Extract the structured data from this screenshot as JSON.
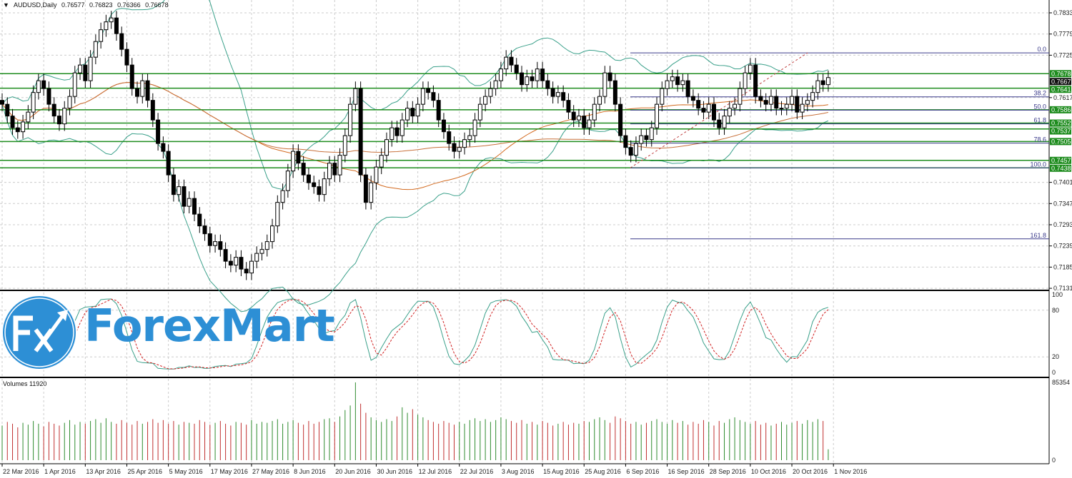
{
  "header": {
    "symbol": "AUDUSD,Daily",
    "open": "0.76577",
    "high": "0.76823",
    "low": "0.76366",
    "close": "0.76678",
    "menu_icon": "triangle-down-icon"
  },
  "logo": {
    "text": "ForexMart",
    "mark": "Fx",
    "color": "#2d8fd5"
  },
  "volume_label": "Volumes 11920",
  "chart_data": [
    {
      "type": "candlestick",
      "title": "AUDUSD,Daily",
      "price_ticks": [
        "0.7833",
        "0.7779",
        "0.7725",
        "0.7617",
        "0.7401",
        "0.7347",
        "0.7293",
        "0.7239",
        "0.7185",
        "0.7131"
      ],
      "ylim": [
        0.7131,
        0.7833
      ],
      "date_ticks": [
        "22 Mar 2016",
        "1 Apr 2016",
        "13 Apr 2016",
        "25 Apr 2016",
        "5 May 2016",
        "17 May 2016",
        "27 May 2016",
        "8 Jun 2016",
        "20 Jun 2016",
        "30 Jun 2016",
        "12 Jul 2016",
        "22 Jul 2016",
        "3 Aug 2016",
        "15 Aug 2016",
        "25 Aug 2016",
        "6 Sep 2016",
        "16 Sep 2016",
        "28 Sep 2016",
        "10 Oct 2016",
        "20 Oct 2016",
        "1 Nov 2016"
      ],
      "closes": [
        0.76,
        0.757,
        0.754,
        0.753,
        0.7555,
        0.758,
        0.763,
        0.766,
        0.764,
        0.76,
        0.757,
        0.755,
        0.759,
        0.762,
        0.768,
        0.77,
        0.766,
        0.772,
        0.776,
        0.779,
        0.781,
        0.782,
        0.778,
        0.774,
        0.77,
        0.764,
        0.762,
        0.766,
        0.761,
        0.756,
        0.75,
        0.748,
        0.742,
        0.737,
        0.739,
        0.734,
        0.736,
        0.732,
        0.729,
        0.727,
        0.724,
        0.725,
        0.723,
        0.72,
        0.719,
        0.721,
        0.718,
        0.717,
        0.72,
        0.722,
        0.723,
        0.725,
        0.729,
        0.735,
        0.738,
        0.743,
        0.748,
        0.745,
        0.742,
        0.74,
        0.739,
        0.737,
        0.741,
        0.745,
        0.742,
        0.747,
        0.752,
        0.76,
        0.764,
        0.742,
        0.735,
        0.74,
        0.744,
        0.747,
        0.751,
        0.754,
        0.752,
        0.756,
        0.759,
        0.757,
        0.76,
        0.764,
        0.763,
        0.761,
        0.756,
        0.753,
        0.75,
        0.748,
        0.749,
        0.751,
        0.752,
        0.756,
        0.76,
        0.762,
        0.764,
        0.766,
        0.769,
        0.772,
        0.77,
        0.768,
        0.765,
        0.767,
        0.766,
        0.769,
        0.766,
        0.764,
        0.762,
        0.763,
        0.761,
        0.758,
        0.756,
        0.757,
        0.754,
        0.756,
        0.76,
        0.762,
        0.768,
        0.766,
        0.76,
        0.752,
        0.749,
        0.747,
        0.75,
        0.752,
        0.751,
        0.754,
        0.76,
        0.764,
        0.766,
        0.767,
        0.765,
        0.766,
        0.762,
        0.761,
        0.759,
        0.758,
        0.76,
        0.756,
        0.754,
        0.757,
        0.759,
        0.76,
        0.764,
        0.768,
        0.77,
        0.762,
        0.761,
        0.76,
        0.762,
        0.759,
        0.759,
        0.76,
        0.762,
        0.758,
        0.76,
        0.761,
        0.763,
        0.766,
        0.765,
        0.7668
      ],
      "levels": [
        {
          "price": 0.7678,
          "label": "0.7678"
        },
        {
          "price": 0.7641,
          "label": "0.7641"
        },
        {
          "price": 0.7586,
          "label": "0.7586"
        },
        {
          "price": 0.7552,
          "label": "0.7552"
        },
        {
          "price": 0.7537,
          "label": "0.7537"
        },
        {
          "price": 0.7505,
          "label": "0.7505"
        },
        {
          "price": 0.7457,
          "label": "0.7457"
        },
        {
          "price": 0.7438,
          "label": "0.7438"
        }
      ],
      "current_price_label": "0.7667",
      "fibonacci": [
        {
          "level": "0.0",
          "price": 0.7731
        },
        {
          "level": "38.2",
          "price": 0.7619
        },
        {
          "level": "50.0",
          "price": 0.7585
        },
        {
          "level": "61.8",
          "price": 0.755
        },
        {
          "level": "78.6",
          "price": 0.7501
        },
        {
          "level": "100.0",
          "price": 0.7438
        },
        {
          "level": "161.8",
          "price": 0.7257
        }
      ],
      "colors": {
        "level": "#1e8c1e",
        "label_bg": "#1e8c1e",
        "fib": "#3a3a8a",
        "ma_fast": "#d2691e",
        "ma_slow": "#c8703a",
        "bands": "#3aa08a",
        "stoch_main": "#3aa08a",
        "stoch_signal": "#d02020"
      }
    },
    {
      "type": "line",
      "title": "",
      "yticks": [
        "100",
        "80",
        "20",
        "0"
      ],
      "ylim": [
        0,
        100
      ]
    },
    {
      "type": "bar",
      "title": "Volumes 11920",
      "yticks": [
        "85354",
        "0"
      ],
      "ylim": [
        0,
        85354
      ],
      "values": [
        38000,
        42000,
        40000,
        36000,
        41000,
        39000,
        43000,
        40000,
        37000,
        42000,
        40000,
        38000,
        41000,
        44000,
        39000,
        42000,
        40000,
        43000,
        45000,
        41000,
        46000,
        42000,
        40000,
        44000,
        41000,
        39000,
        43000,
        40000,
        42000,
        45000,
        41000,
        44000,
        40000,
        43000,
        39000,
        42000,
        41000,
        40000,
        44000,
        42000,
        39000,
        41000,
        43000,
        40000,
        38000,
        42000,
        41000,
        39000,
        44000,
        40000,
        42000,
        41000,
        43000,
        45000,
        40000,
        42000,
        44000,
        41000,
        39000,
        43000,
        40000,
        42000,
        45000,
        46000,
        42000,
        48000,
        55000,
        60000,
        85354,
        62000,
        52000,
        47000,
        44000,
        42000,
        45000,
        43000,
        48000,
        58000,
        52000,
        56000,
        50000,
        47000,
        44000,
        42000,
        40000,
        43000,
        41000,
        39000,
        42000,
        40000,
        44000,
        46000,
        43000,
        45000,
        42000,
        44000,
        47000,
        45000,
        43000,
        41000,
        44000,
        40000,
        42000,
        39000,
        43000,
        41000,
        38000,
        40000,
        42000,
        39000,
        41000,
        40000,
        43000,
        42000,
        45000,
        47000,
        44000,
        41000,
        48000,
        46000,
        43000,
        40000,
        42000,
        39000,
        41000,
        43000,
        45000,
        42000,
        40000,
        44000,
        41000,
        43000,
        39000,
        42000,
        40000,
        44000,
        42000,
        38000,
        43000,
        41000,
        45000,
        47000,
        44000,
        42000,
        40000,
        43000,
        39000,
        41000,
        38000,
        40000,
        42000,
        39000,
        41000,
        43000,
        40000,
        44000,
        42000,
        45000,
        43000,
        11920
      ]
    }
  ]
}
